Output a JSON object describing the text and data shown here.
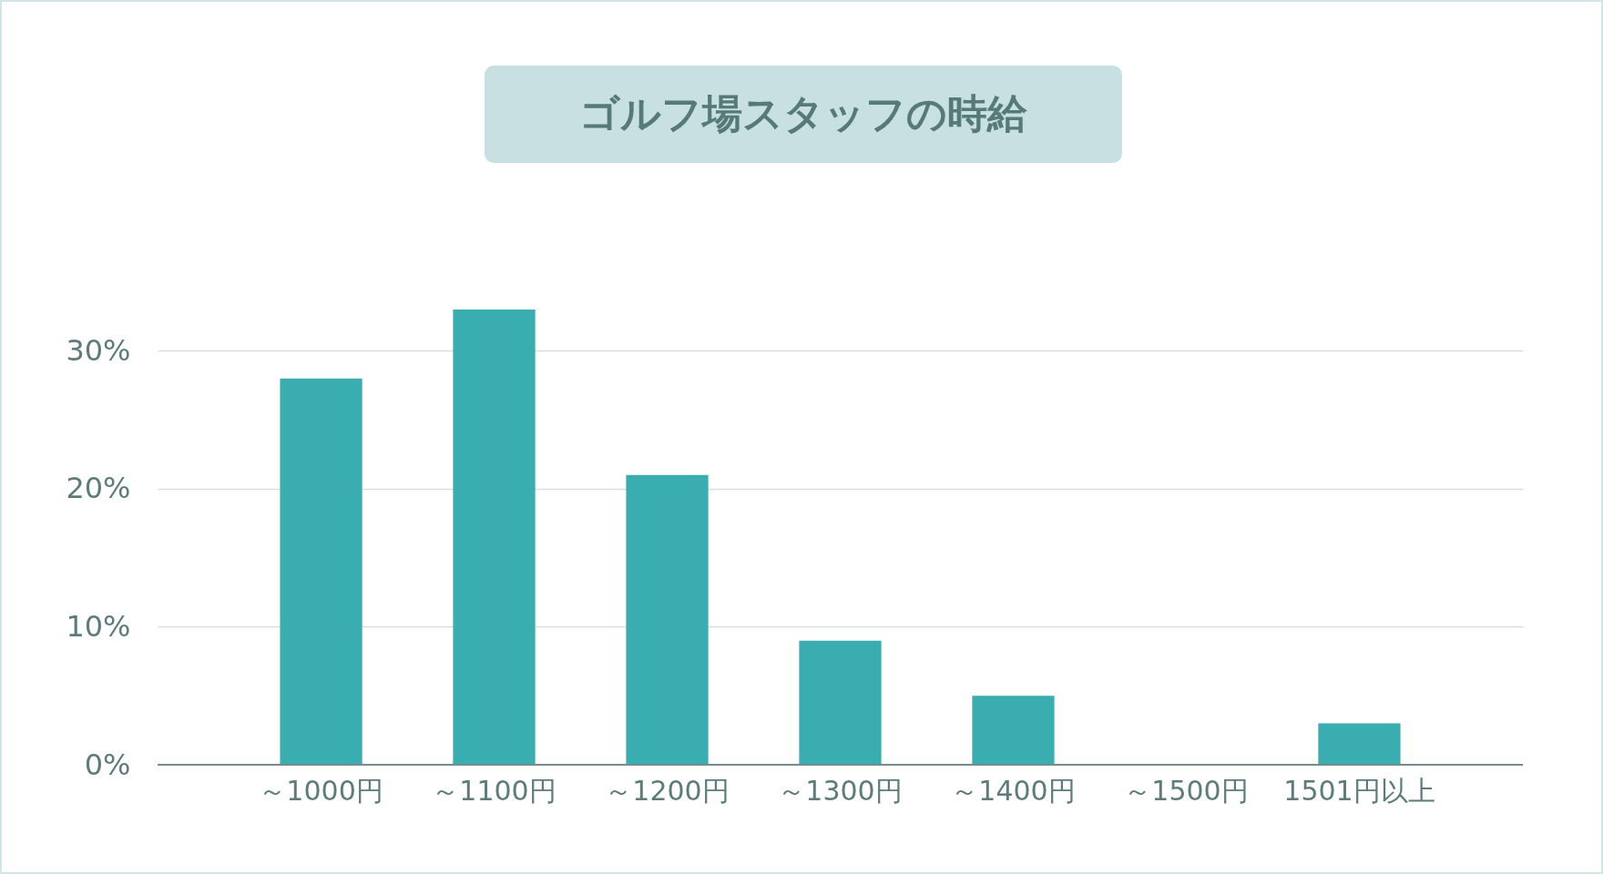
{
  "chart_data": {
    "type": "bar",
    "title": "ゴルフ場スタッフの時給",
    "categories": [
      "～1000円",
      "～1100円",
      "～1200円",
      "～1300円",
      "～1400円",
      "～1500円",
      "1501円以上"
    ],
    "values": [
      28,
      33,
      21,
      9,
      5,
      0,
      3
    ],
    "color": "#3aadb1",
    "ylim": [
      0,
      33
    ],
    "yticks": [
      {
        "value": 0,
        "label": "0%"
      },
      {
        "value": 10,
        "label": "10%"
      },
      {
        "value": 20,
        "label": "20%"
      },
      {
        "value": 30,
        "label": "30%"
      }
    ],
    "grid": "y"
  }
}
